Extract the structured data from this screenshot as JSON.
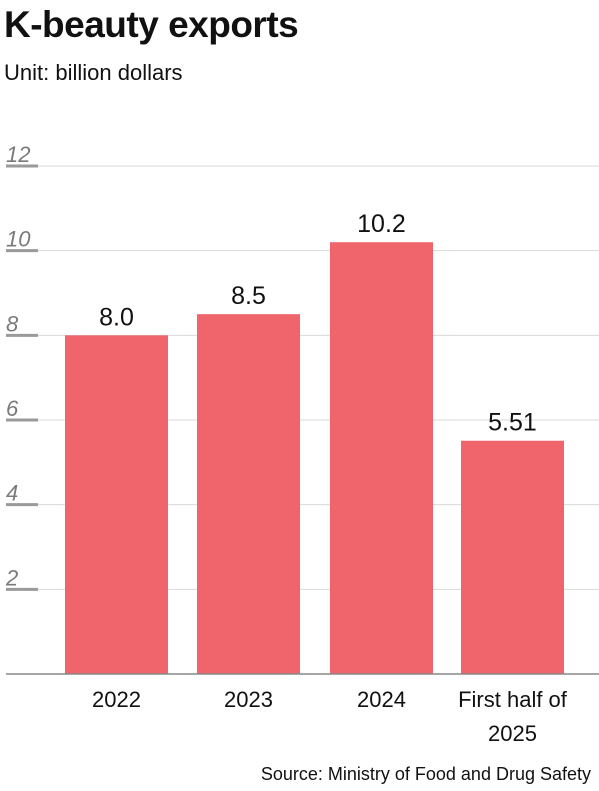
{
  "header": {
    "title": "K-beauty exports",
    "subtitle": "Unit: billion dollars"
  },
  "footer": {
    "source": "Source: Ministry of Food and Drug Safety"
  },
  "colors": {
    "bar": "#f0656c",
    "gridline": "#d9d9d9",
    "tick_mark": "#9a9a9a",
    "tick_label": "#7a7a7a",
    "axis": "#888888",
    "text": "#111111"
  },
  "chart_data": {
    "type": "bar",
    "title": "K-beauty exports",
    "subtitle": "Unit: billion dollars",
    "categories": [
      [
        "2022"
      ],
      [
        "2023"
      ],
      [
        "2024"
      ],
      [
        "First half of",
        "2025"
      ]
    ],
    "values": [
      8.0,
      8.5,
      10.2,
      5.51
    ],
    "value_labels": [
      "8.0",
      "8.5",
      "10.2",
      "5.51"
    ],
    "yticks": [
      2,
      4,
      6,
      8,
      10,
      12
    ],
    "ylim": [
      0,
      12
    ],
    "grid": true,
    "legend": "none",
    "xlabel": "",
    "ylabel": ""
  }
}
